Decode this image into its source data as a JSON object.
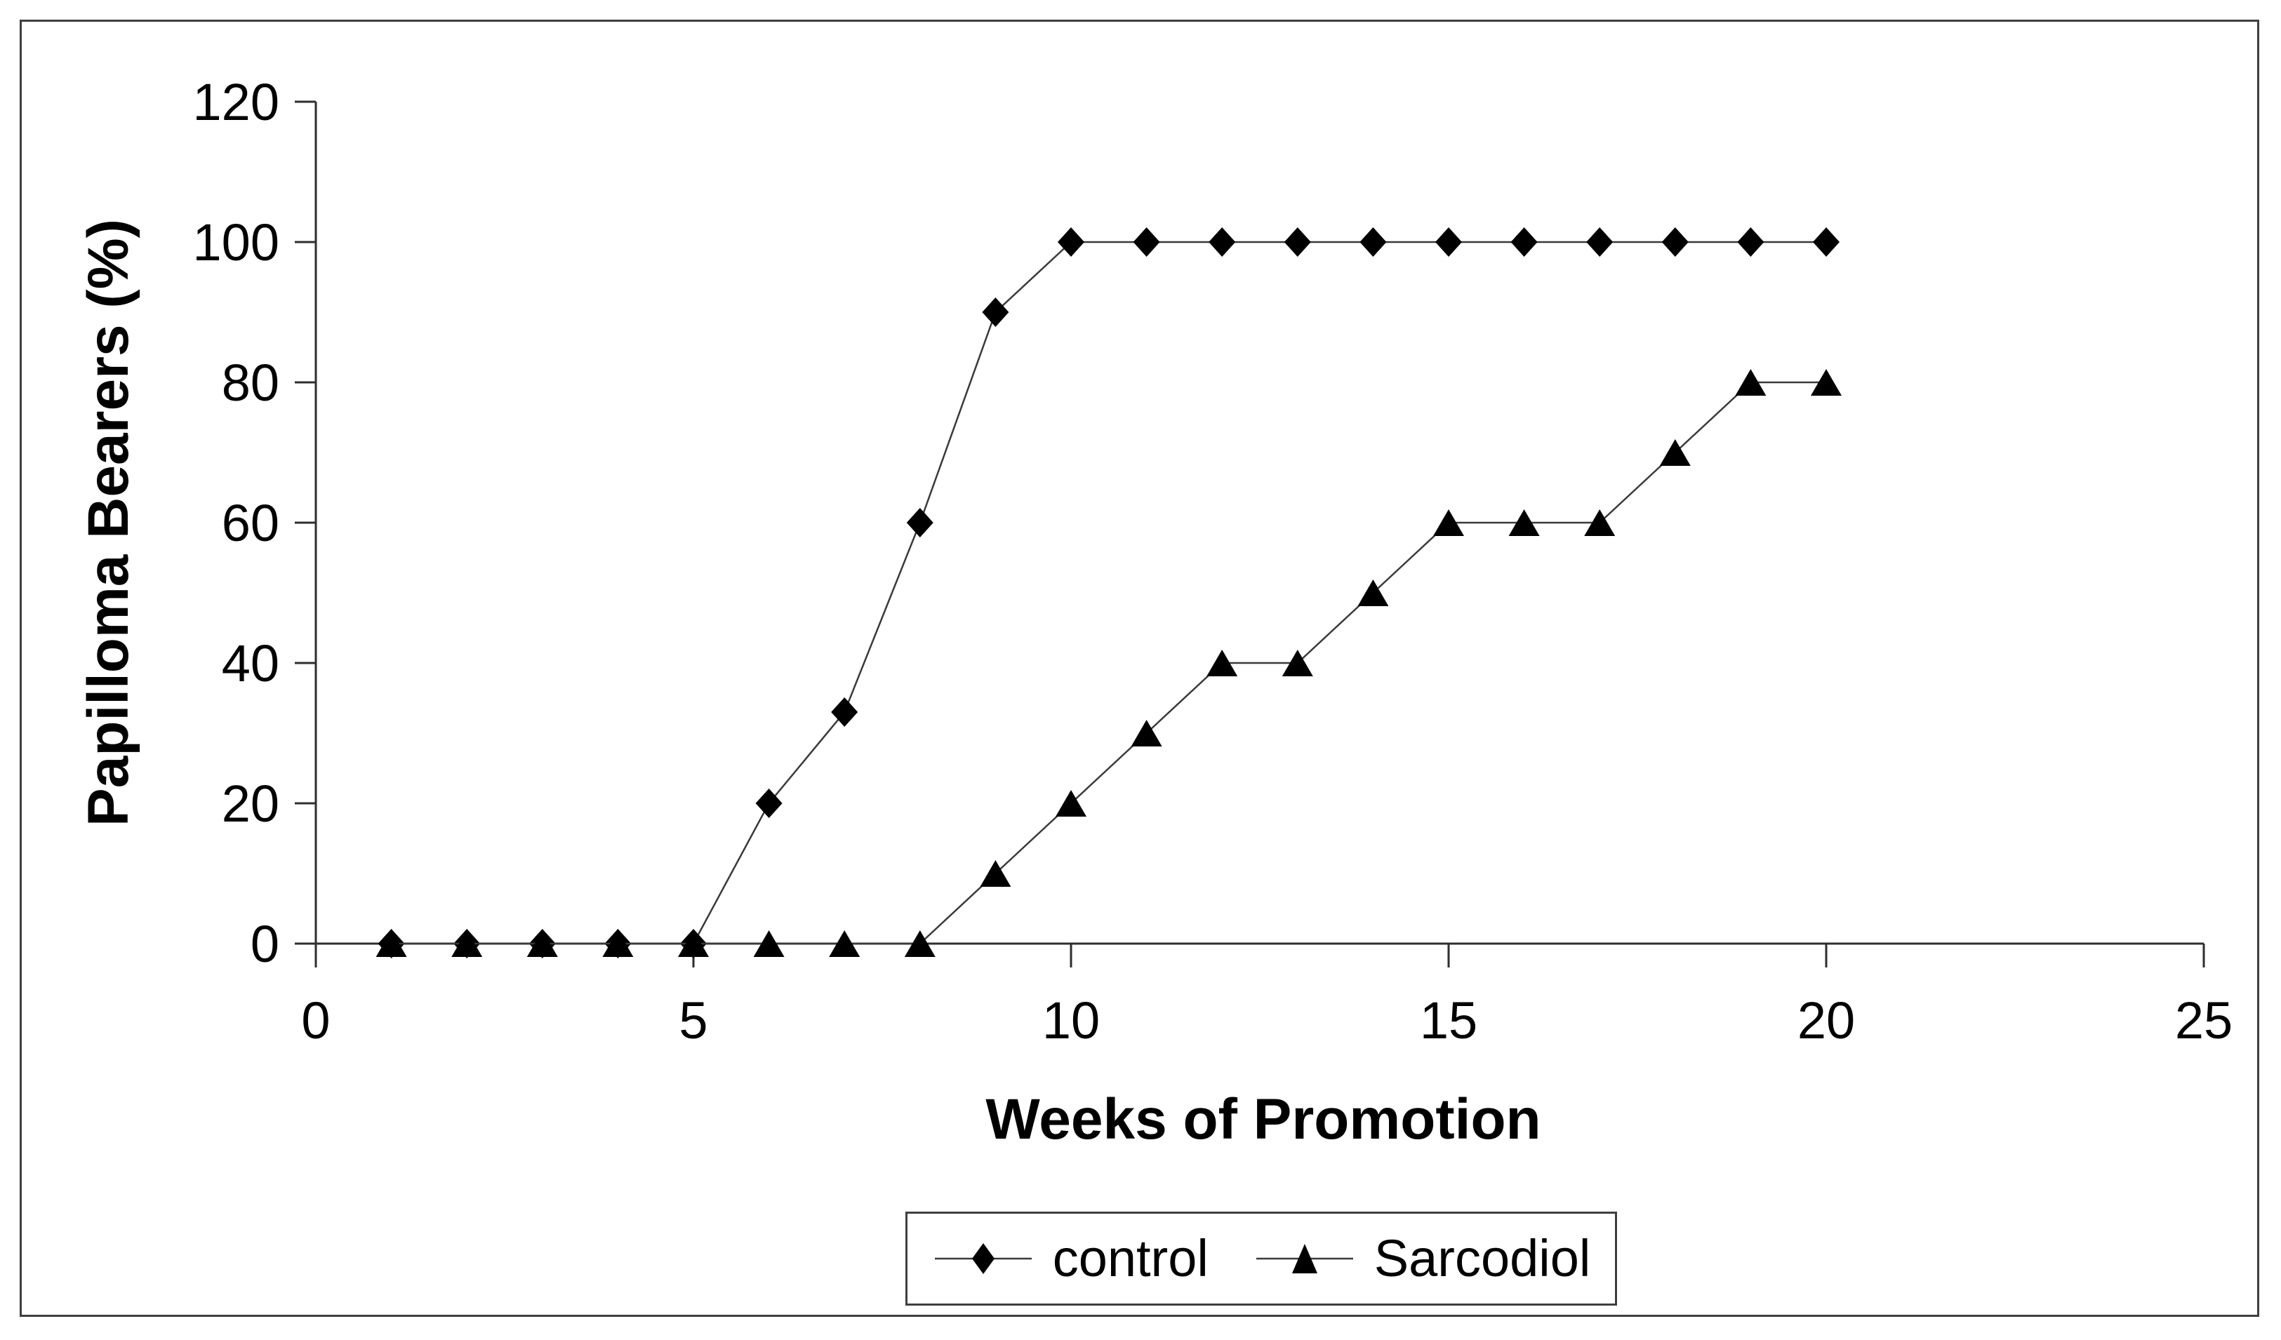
{
  "figure": {
    "background": "#ffffff",
    "frame_color": "#3f3f3f",
    "ink_color": "#000000",
    "line_color": "#3a3a3a"
  },
  "chart_data": {
    "type": "line",
    "title": "",
    "xlabel": "Weeks of Promotion",
    "ylabel": "Papilloma Bearers (%)",
    "x": [
      1,
      2,
      3,
      4,
      5,
      6,
      7,
      8,
      9,
      10,
      11,
      12,
      13,
      14,
      15,
      16,
      17,
      18,
      19,
      20
    ],
    "series": [
      {
        "name": "control",
        "marker": "diamond",
        "values": [
          0,
          0,
          0,
          0,
          0,
          20,
          33,
          60,
          90,
          100,
          100,
          100,
          100,
          100,
          100,
          100,
          100,
          100,
          100,
          100
        ]
      },
      {
        "name": "Sarcodiol",
        "marker": "triangle",
        "values": [
          0,
          0,
          0,
          0,
          0,
          0,
          0,
          0,
          10,
          20,
          30,
          40,
          40,
          50,
          60,
          60,
          60,
          70,
          80,
          80
        ]
      }
    ],
    "xlim": [
      0,
      25
    ],
    "ylim": [
      0,
      120
    ],
    "xticks": [
      0,
      5,
      10,
      15,
      20,
      25
    ],
    "yticks": [
      0,
      20,
      40,
      60,
      80,
      100,
      120
    ],
    "grid": false,
    "legend_position": "bottom-center"
  }
}
